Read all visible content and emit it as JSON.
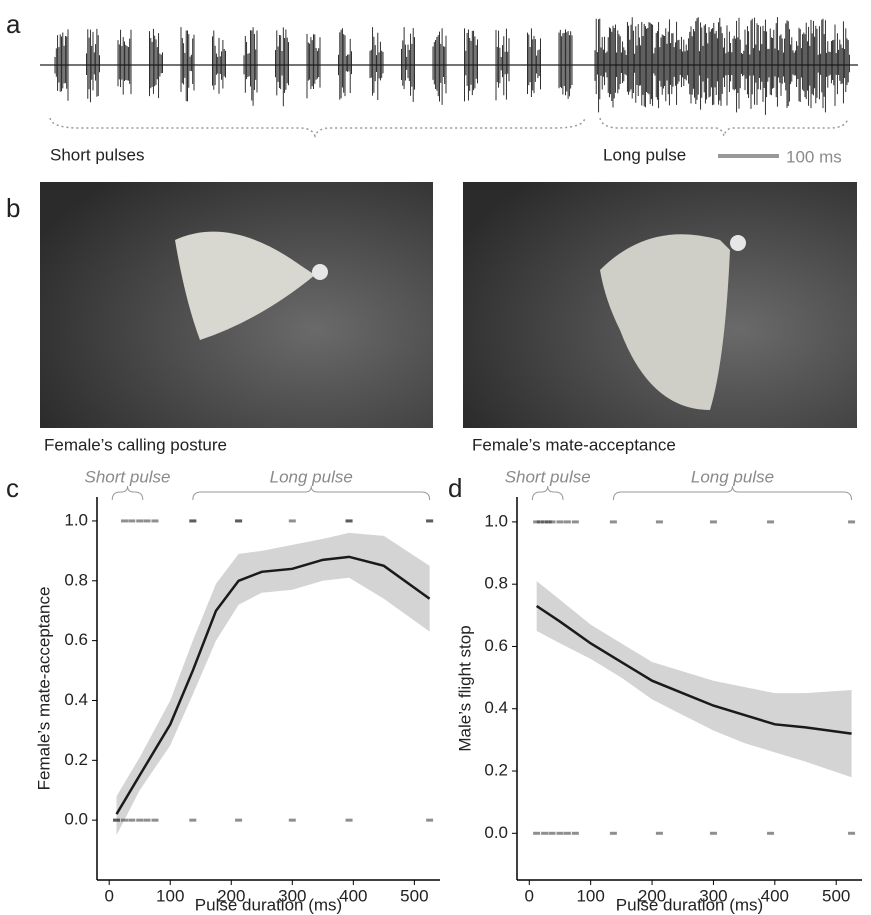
{
  "panel_labels": [
    "a",
    "b",
    "c",
    "d"
  ],
  "oscillogram": {
    "short_label": "Short pulses",
    "long_label": "Long pulse",
    "scale_label": "100 ms"
  },
  "photos": {
    "left_caption": "Female’s calling posture",
    "right_caption": "Female’s mate-acceptance"
  },
  "chart_data": [
    {
      "type": "line",
      "xlabel": "Pulse duration (ms)",
      "ylabel": "Female’s mate-acceptance",
      "xlim": [
        -20,
        542
      ],
      "ylim": [
        -0.2,
        1.08
      ],
      "xticks": [
        0,
        100,
        200,
        300,
        400,
        500
      ],
      "yticks": [
        {
          "value": 0,
          "label": "0.0"
        },
        {
          "value": 0.2,
          "label": "0.2"
        },
        {
          "value": 0.4,
          "label": "0.4"
        },
        {
          "value": 0.6,
          "label": "0.6"
        },
        {
          "value": 0.8,
          "label": "0.8"
        },
        {
          "value": 1,
          "label": "1.0"
        }
      ],
      "x": [
        12,
        50,
        100,
        137,
        175,
        212,
        250,
        300,
        350,
        393,
        450,
        525
      ],
      "series": [
        {
          "color": "#1a1a1a",
          "values": [
            0.02,
            0.15,
            0.32,
            0.5,
            0.7,
            0.8,
            0.83,
            0.84,
            0.87,
            0.88,
            0.85,
            0.74
          ]
        }
      ],
      "band": {
        "color": "#d4d4d4",
        "lower": [
          -0.05,
          0.1,
          0.25,
          0.42,
          0.6,
          0.72,
          0.76,
          0.77,
          0.8,
          0.81,
          0.74,
          0.63
        ],
        "upper": [
          0.08,
          0.21,
          0.4,
          0.6,
          0.79,
          0.89,
          0.9,
          0.92,
          0.94,
          0.96,
          0.95,
          0.85
        ]
      },
      "points": {
        "color": "#333333",
        "x": [
          25,
          37,
          50,
          62,
          75,
          137,
          137,
          212,
          212,
          300,
          393,
          393,
          525,
          525,
          12,
          12,
          25,
          37,
          50,
          62,
          75,
          137,
          212,
          300,
          393,
          525
        ],
        "y": [
          1,
          1,
          1,
          1,
          1,
          1,
          1,
          1,
          1,
          1,
          1,
          1,
          1,
          1,
          0,
          0,
          0,
          0,
          0,
          0,
          0,
          0,
          0,
          0,
          0,
          0
        ]
      },
      "annotations": [
        {
          "text": "Short pulse",
          "range": [
            5,
            55
          ]
        },
        {
          "text": "Long pulse",
          "range": [
            137,
            525
          ]
        }
      ]
    },
    {
      "type": "line",
      "xlabel": "Pulse duration (ms)",
      "ylabel": "Male’s flight stop",
      "xlim": [
        -20,
        542
      ],
      "ylim": [
        -0.15,
        1.08
      ],
      "xticks": [
        0,
        100,
        200,
        300,
        400,
        500
      ],
      "yticks": [
        {
          "value": 0,
          "label": "0.0"
        },
        {
          "value": 0.2,
          "label": "0.2"
        },
        {
          "value": 0.4,
          "label": "0.4"
        },
        {
          "value": 0.6,
          "label": "0.6"
        },
        {
          "value": 0.8,
          "label": "0.8"
        },
        {
          "value": 1,
          "label": "1.0"
        }
      ],
      "x": [
        12,
        50,
        100,
        150,
        200,
        250,
        300,
        350,
        400,
        450,
        525
      ],
      "series": [
        {
          "color": "#1a1a1a",
          "values": [
            0.73,
            0.68,
            0.61,
            0.55,
            0.49,
            0.45,
            0.41,
            0.38,
            0.35,
            0.34,
            0.32
          ]
        }
      ],
      "band": {
        "color": "#d4d4d4",
        "lower": [
          0.65,
          0.61,
          0.56,
          0.5,
          0.43,
          0.38,
          0.33,
          0.29,
          0.26,
          0.23,
          0.18
        ],
        "upper": [
          0.81,
          0.75,
          0.67,
          0.61,
          0.55,
          0.52,
          0.49,
          0.47,
          0.45,
          0.45,
          0.46
        ]
      },
      "points": {
        "color": "#333333",
        "x": [
          12,
          18,
          25,
          31,
          37,
          50,
          62,
          75,
          137,
          212,
          300,
          393,
          525,
          12,
          25,
          37,
          50,
          62,
          75,
          137,
          212,
          300,
          393,
          525
        ],
        "y": [
          1,
          1,
          1,
          1,
          1,
          1,
          1,
          1,
          1,
          1,
          1,
          1,
          1,
          0,
          0,
          0,
          0,
          0,
          0,
          0,
          0,
          0,
          0,
          0
        ]
      },
      "annotations": [
        {
          "text": "Short pulse",
          "range": [
            5,
            55
          ]
        },
        {
          "text": "Long pulse",
          "range": [
            137,
            525
          ]
        }
      ]
    }
  ]
}
